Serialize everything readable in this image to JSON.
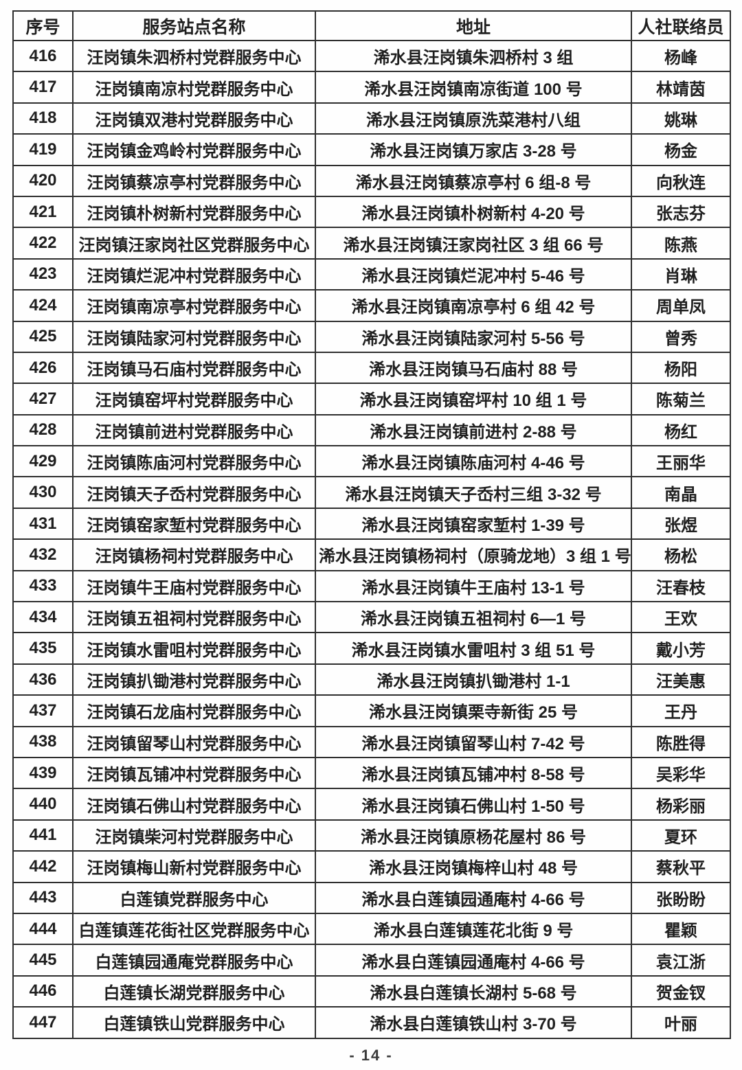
{
  "table": {
    "columns": [
      "序号",
      "服务站点名称",
      "地址",
      "人社联络员"
    ],
    "rows": [
      {
        "no": "416",
        "name": "汪岗镇朱泗桥村党群服务中心",
        "address": "浠水县汪岗镇朱泗桥村 3 组",
        "contact": "杨峰"
      },
      {
        "no": "417",
        "name": "汪岗镇南凉村党群服务中心",
        "address": "浠水县汪岗镇南凉街道 100 号",
        "contact": "林靖茵"
      },
      {
        "no": "418",
        "name": "汪岗镇双港村党群服务中心",
        "address": "浠水县汪岗镇原洗菜港村八组",
        "contact": "姚琳"
      },
      {
        "no": "419",
        "name": "汪岗镇金鸡岭村党群服务中心",
        "address": "浠水县汪岗镇万家店 3-28 号",
        "contact": "杨金"
      },
      {
        "no": "420",
        "name": "汪岗镇蔡凉亭村党群服务中心",
        "address": "浠水县汪岗镇蔡凉亭村 6 组-8 号",
        "contact": "向秋连"
      },
      {
        "no": "421",
        "name": "汪岗镇朴树新村党群服务中心",
        "address": "浠水县汪岗镇朴树新村 4-20 号",
        "contact": "张志芬"
      },
      {
        "no": "422",
        "name": "汪岗镇汪家岗社区党群服务中心",
        "address": "浠水县汪岗镇汪家岗社区 3 组 66 号",
        "contact": "陈燕"
      },
      {
        "no": "423",
        "name": "汪岗镇烂泥冲村党群服务中心",
        "address": "浠水县汪岗镇烂泥冲村 5-46 号",
        "contact": "肖琳"
      },
      {
        "no": "424",
        "name": "汪岗镇南凉亭村党群服务中心",
        "address": "浠水县汪岗镇南凉亭村 6 组 42 号",
        "contact": "周单凤"
      },
      {
        "no": "425",
        "name": "汪岗镇陆家河村党群服务中心",
        "address": "浠水县汪岗镇陆家河村 5-56 号",
        "contact": "曾秀"
      },
      {
        "no": "426",
        "name": "汪岗镇马石庙村党群服务中心",
        "address": "浠水县汪岗镇马石庙村 88 号",
        "contact": "杨阳"
      },
      {
        "no": "427",
        "name": "汪岗镇窑坪村党群服务中心",
        "address": "浠水县汪岗镇窑坪村 10 组 1 号",
        "contact": "陈菊兰"
      },
      {
        "no": "428",
        "name": "汪岗镇前进村党群服务中心",
        "address": "浠水县汪岗镇前进村 2-88 号",
        "contact": "杨红"
      },
      {
        "no": "429",
        "name": "汪岗镇陈庙河村党群服务中心",
        "address": "浠水县汪岗镇陈庙河村 4-46 号",
        "contact": "王丽华"
      },
      {
        "no": "430",
        "name": "汪岗镇天子岙村党群服务中心",
        "address": "浠水县汪岗镇天子岙村三组 3-32 号",
        "contact": "南晶"
      },
      {
        "no": "431",
        "name": "汪岗镇窑家堑村党群服务中心",
        "address": "浠水县汪岗镇窑家堑村 1-39 号",
        "contact": "张煜"
      },
      {
        "no": "432",
        "name": "汪岗镇杨祠村党群服务中心",
        "address": "浠水县汪岗镇杨祠村（原骑龙地）3 组 1 号",
        "contact": "杨松"
      },
      {
        "no": "433",
        "name": "汪岗镇牛王庙村党群服务中心",
        "address": "浠水县汪岗镇牛王庙村 13-1 号",
        "contact": "汪春枝"
      },
      {
        "no": "434",
        "name": "汪岗镇五祖祠村党群服务中心",
        "address": "浠水县汪岗镇五祖祠村 6—1 号",
        "contact": "王欢"
      },
      {
        "no": "435",
        "name": "汪岗镇水雷咀村党群服务中心",
        "address": "浠水县汪岗镇水雷咀村 3 组 51 号",
        "contact": "戴小芳"
      },
      {
        "no": "436",
        "name": "汪岗镇扒锄港村党群服务中心",
        "address": "浠水县汪岗镇扒锄港村 1-1",
        "contact": "汪美惠"
      },
      {
        "no": "437",
        "name": "汪岗镇石龙庙村党群服务中心",
        "address": "浠水县汪岗镇栗寺新街 25 号",
        "contact": "王丹"
      },
      {
        "no": "438",
        "name": "汪岗镇留琴山村党群服务中心",
        "address": "浠水县汪岗镇留琴山村 7-42 号",
        "contact": "陈胜得"
      },
      {
        "no": "439",
        "name": "汪岗镇瓦铺冲村党群服务中心",
        "address": "浠水县汪岗镇瓦铺冲村 8-58 号",
        "contact": "吴彩华"
      },
      {
        "no": "440",
        "name": "汪岗镇石佛山村党群服务中心",
        "address": "浠水县汪岗镇石佛山村 1-50 号",
        "contact": "杨彩丽"
      },
      {
        "no": "441",
        "name": "汪岗镇柴河村党群服务中心",
        "address": "浠水县汪岗镇原杨花屋村 86 号",
        "contact": "夏环"
      },
      {
        "no": "442",
        "name": "汪岗镇梅山新村党群服务中心",
        "address": "浠水县汪岗镇梅梓山村 48 号",
        "contact": "蔡秋平"
      },
      {
        "no": "443",
        "name": "白莲镇党群服务中心",
        "address": "浠水县白莲镇园通庵村 4-66 号",
        "contact": "张盼盼"
      },
      {
        "no": "444",
        "name": "白莲镇莲花街社区党群服务中心",
        "address": "浠水县白莲镇莲花北街 9 号",
        "contact": "瞿颖"
      },
      {
        "no": "445",
        "name": "白莲镇园通庵党群服务中心",
        "address": "浠水县白莲镇园通庵村 4-66 号",
        "contact": "袁江浙"
      },
      {
        "no": "446",
        "name": "白莲镇长湖党群服务中心",
        "address": "浠水县白莲镇长湖村 5-68 号",
        "contact": "贺金钗"
      },
      {
        "no": "447",
        "name": "白莲镇铁山党群服务中心",
        "address": "浠水县白莲镇铁山村 3-70 号",
        "contact": "叶丽"
      }
    ]
  },
  "footer": {
    "page_label": "- 14 -"
  }
}
